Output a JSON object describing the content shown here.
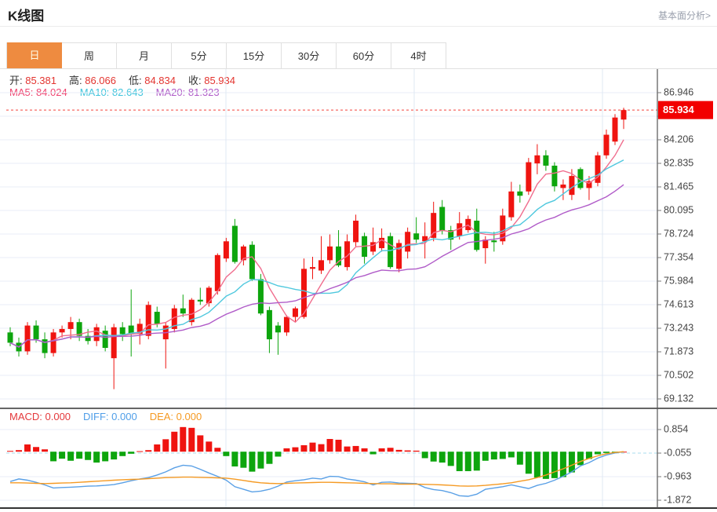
{
  "header": {
    "title": "K线图",
    "link_label": "基本面分析>"
  },
  "tabs": {
    "active": "日",
    "items": [
      "日",
      "周",
      "月",
      "5分",
      "15分",
      "30分",
      "60分",
      "4时"
    ]
  },
  "ohlc_legend": {
    "items": [
      {
        "label": "开:",
        "value": "85.381"
      },
      {
        "label": "高:",
        "value": "86.066"
      },
      {
        "label": "低:",
        "value": "84.834"
      },
      {
        "label": "收:",
        "value": "85.934"
      }
    ]
  },
  "ma_legend": {
    "items": [
      {
        "label": "MA5:",
        "value": "84.024",
        "color": "#f0436f"
      },
      {
        "label": "MA10:",
        "value": "82.643",
        "color": "#3fc4dc"
      },
      {
        "label": "MA20:",
        "value": "81.323",
        "color": "#b05bc8"
      }
    ]
  },
  "macd_legend": {
    "items": [
      {
        "label": "MACD:",
        "value": "0.000",
        "color": "#e4393c"
      },
      {
        "label": "DIFF:",
        "value": "0.000",
        "color": "#4f9ee8"
      },
      {
        "label": "DEA:",
        "value": "0.000",
        "color": "#f59a23"
      }
    ]
  },
  "colors": {
    "up": "#ef1410",
    "down": "#0da50d",
    "ma5": "#f06e8e",
    "ma10": "#4fc8de",
    "ma20": "#b05bc8",
    "diff_line": "#5aa0e6",
    "dea_line": "#f59a23",
    "grid": "#e8eef7",
    "vgrid": "#dfe8f3",
    "axis_text": "#444444",
    "tick_mark": "#777777",
    "price_tag_bg": "#f20000",
    "price_tag_text": "#ffffff",
    "dashed_price": "#f5443c",
    "dashed_zero": "#a9dcec",
    "tab_active_bg": "#ee8b40",
    "panel_border": "#333333"
  },
  "chart_data": {
    "type": "candlestick",
    "title": "K线图",
    "interval_selected": "日",
    "legend_position": "top-left-overlay",
    "grid": true,
    "price_axis": {
      "side": "right",
      "top": 86.946,
      "bottom": 69.132,
      "ticks": [
        "86.946",
        "85.576",
        "84.206",
        "82.835",
        "81.465",
        "80.095",
        "78.724",
        "77.354",
        "75.984",
        "74.613",
        "73.243",
        "71.873",
        "70.502",
        "69.132"
      ]
    },
    "current_price_line": {
      "value": 85.934,
      "label": "85.934"
    },
    "ohlc_last": {
      "open": 85.381,
      "high": 86.066,
      "low": 84.834,
      "close": 85.934
    },
    "ma_periods": [
      5,
      10,
      20
    ],
    "ma_last": {
      "ma5": 84.024,
      "ma10": 82.643,
      "ma20": 81.323
    },
    "candles": [
      [
        73.0,
        73.3,
        72.2,
        72.4
      ],
      [
        72.4,
        72.7,
        71.6,
        71.9
      ],
      [
        71.9,
        73.6,
        71.7,
        73.4
      ],
      [
        73.4,
        73.7,
        72.4,
        72.6
      ],
      [
        72.6,
        73.0,
        71.5,
        71.8
      ],
      [
        71.8,
        73.2,
        71.6,
        73.0
      ],
      [
        73.0,
        73.4,
        72.7,
        73.2
      ],
      [
        73.2,
        73.9,
        72.6,
        73.6
      ],
      [
        73.6,
        73.8,
        72.5,
        72.8
      ],
      [
        72.8,
        73.2,
        72.3,
        72.5
      ],
      [
        72.5,
        73.5,
        72.2,
        73.3
      ],
      [
        73.1,
        73.4,
        71.9,
        72.1
      ],
      [
        71.5,
        73.5,
        69.7,
        73.3
      ],
      [
        73.3,
        73.6,
        72.5,
        72.9
      ],
      [
        73.4,
        75.5,
        71.6,
        72.9
      ],
      [
        72.9,
        73.8,
        72.3,
        73.5
      ],
      [
        72.8,
        74.8,
        72.6,
        74.6
      ],
      [
        74.2,
        74.5,
        73.3,
        73.5
      ],
      [
        72.6,
        73.6,
        70.9,
        73.4
      ],
      [
        73.2,
        74.6,
        73.0,
        74.4
      ],
      [
        74.4,
        75.2,
        73.9,
        74.1
      ],
      [
        73.6,
        75.0,
        73.4,
        74.9
      ],
      [
        74.9,
        75.6,
        74.6,
        74.8
      ],
      [
        74.7,
        75.7,
        74.5,
        75.6
      ],
      [
        75.4,
        77.6,
        75.2,
        77.5
      ],
      [
        77.3,
        78.5,
        77.1,
        78.3
      ],
      [
        79.2,
        79.6,
        77.0,
        77.1
      ],
      [
        77.2,
        78.1,
        76.9,
        78.0
      ],
      [
        78.1,
        78.3,
        76.0,
        76.1
      ],
      [
        76.1,
        76.4,
        74.0,
        74.1
      ],
      [
        74.3,
        74.5,
        71.8,
        72.6
      ],
      [
        73.4,
        73.6,
        71.7,
        73.0
      ],
      [
        73.0,
        74.0,
        72.8,
        73.9
      ],
      [
        73.9,
        74.5,
        73.6,
        74.4
      ],
      [
        73.9,
        77.3,
        73.8,
        76.7
      ],
      [
        76.7,
        77.4,
        76.1,
        76.8
      ],
      [
        76.6,
        78.6,
        76.4,
        77.2
      ],
      [
        77.2,
        78.7,
        77.0,
        78.0
      ],
      [
        78.0,
        78.95,
        76.8,
        76.9
      ],
      [
        76.8,
        78.7,
        76.6,
        78.3
      ],
      [
        78.25,
        79.85,
        78.0,
        79.5
      ],
      [
        78.6,
        78.8,
        77.0,
        77.4
      ],
      [
        77.7,
        79.1,
        77.5,
        78.25
      ],
      [
        77.9,
        79.05,
        77.7,
        78.5
      ],
      [
        78.6,
        78.8,
        76.7,
        76.8
      ],
      [
        76.7,
        78.4,
        76.5,
        78.2
      ],
      [
        77.7,
        79.1,
        77.3,
        78.85
      ],
      [
        78.76,
        79.7,
        78.2,
        78.4
      ],
      [
        78.3,
        79.4,
        77.3,
        78.6
      ],
      [
        78.5,
        80.6,
        78.3,
        79.95
      ],
      [
        80.3,
        80.7,
        78.7,
        78.9
      ],
      [
        78.95,
        79.2,
        77.8,
        78.4
      ],
      [
        78.6,
        80.0,
        78.4,
        79.35
      ],
      [
        78.95,
        79.8,
        78.8,
        79.6
      ],
      [
        79.5,
        80.2,
        77.7,
        77.8
      ],
      [
        77.9,
        78.6,
        77.0,
        78.4
      ],
      [
        78.35,
        78.85,
        77.7,
        78.25
      ],
      [
        78.3,
        80.2,
        78.1,
        79.8
      ],
      [
        79.7,
        81.76,
        79.5,
        81.2
      ],
      [
        81.2,
        81.6,
        80.55,
        80.95
      ],
      [
        81.2,
        83.15,
        81.0,
        82.9
      ],
      [
        82.83,
        83.95,
        82.2,
        83.3
      ],
      [
        83.3,
        83.6,
        82.4,
        82.7
      ],
      [
        82.7,
        82.9,
        81.2,
        81.5
      ],
      [
        81.4,
        81.9,
        80.7,
        81.6
      ],
      [
        81.0,
        82.5,
        80.7,
        82.1
      ],
      [
        82.5,
        82.6,
        81.3,
        81.4
      ],
      [
        81.4,
        82.1,
        80.7,
        81.8
      ],
      [
        81.7,
        83.5,
        81.5,
        83.3
      ],
      [
        83.3,
        84.8,
        83.1,
        84.5
      ],
      [
        84.1,
        85.7,
        83.9,
        85.5
      ],
      [
        85.381,
        86.066,
        84.834,
        85.934
      ]
    ],
    "macd_axis": {
      "side": "right",
      "top": 0.854,
      "bottom": -1.872,
      "ticks": [
        "0.854",
        "-0.055",
        "-0.963",
        "-1.872"
      ],
      "zero_dash_value": -0.055
    },
    "macd": {
      "last": {
        "macd": 0.0,
        "diff": 0.0,
        "dea": 0.0
      },
      "histogram": [
        0.03,
        0.06,
        0.28,
        0.18,
        0.09,
        -0.37,
        -0.27,
        -0.35,
        -0.27,
        -0.32,
        -0.42,
        -0.37,
        -0.3,
        -0.17,
        -0.08,
        0.02,
        0.06,
        0.28,
        0.48,
        0.77,
        0.95,
        0.92,
        0.63,
        0.39,
        0.15,
        -0.17,
        -0.57,
        -0.62,
        -0.77,
        -0.65,
        -0.47,
        -0.19,
        0.13,
        0.17,
        0.25,
        0.35,
        0.29,
        0.49,
        0.46,
        0.2,
        0.22,
        0.13,
        -0.1,
        0.13,
        0.15,
        0.07,
        0.05,
        0.04,
        -0.25,
        -0.38,
        -0.42,
        -0.55,
        -0.75,
        -0.75,
        -0.73,
        -0.35,
        -0.3,
        -0.28,
        -0.22,
        -0.5,
        -0.85,
        -1.0,
        -1.05,
        -1.02,
        -0.98,
        -0.8,
        -0.52,
        -0.28,
        -0.1,
        -0.05,
        -0.02,
        0.0
      ],
      "diff": [
        -1.15,
        -1.05,
        -1.1,
        -1.18,
        -1.28,
        -1.4,
        -1.38,
        -1.37,
        -1.35,
        -1.33,
        -1.32,
        -1.3,
        -1.27,
        -1.2,
        -1.12,
        -1.05,
        -1.0,
        -0.9,
        -0.78,
        -0.62,
        -0.52,
        -0.55,
        -0.68,
        -0.82,
        -0.95,
        -1.1,
        -1.35,
        -1.45,
        -1.55,
        -1.52,
        -1.45,
        -1.33,
        -1.17,
        -1.12,
        -1.08,
        -1.02,
        -1.05,
        -0.95,
        -0.96,
        -1.05,
        -1.1,
        -1.16,
        -1.28,
        -1.18,
        -1.17,
        -1.21,
        -1.22,
        -1.23,
        -1.38,
        -1.46,
        -1.5,
        -1.58,
        -1.7,
        -1.72,
        -1.64,
        -1.45,
        -1.4,
        -1.35,
        -1.28,
        -1.35,
        -1.42,
        -1.3,
        -1.22,
        -1.1,
        -0.95,
        -0.78,
        -0.55,
        -0.42,
        -0.25,
        -0.13,
        -0.05,
        0.0
      ],
      "dea": [
        -1.2,
        -1.2,
        -1.21,
        -1.22,
        -1.23,
        -1.22,
        -1.21,
        -1.2,
        -1.18,
        -1.16,
        -1.14,
        -1.12,
        -1.1,
        -1.08,
        -1.07,
        -1.06,
        -1.04,
        -1.02,
        -1.0,
        -0.99,
        -0.98,
        -0.98,
        -0.99,
        -1.0,
        -1.01,
        -1.02,
        -1.06,
        -1.11,
        -1.16,
        -1.2,
        -1.22,
        -1.23,
        -1.22,
        -1.21,
        -1.2,
        -1.19,
        -1.18,
        -1.18,
        -1.19,
        -1.2,
        -1.21,
        -1.22,
        -1.23,
        -1.24,
        -1.24,
        -1.25,
        -1.25,
        -1.25,
        -1.26,
        -1.27,
        -1.28,
        -1.3,
        -1.32,
        -1.33,
        -1.32,
        -1.3,
        -1.27,
        -1.24,
        -1.2,
        -1.14,
        -1.08,
        -1.0,
        -0.9,
        -0.78,
        -0.66,
        -0.52,
        -0.38,
        -0.26,
        -0.16,
        -0.08,
        -0.03,
        0.0
      ]
    }
  }
}
